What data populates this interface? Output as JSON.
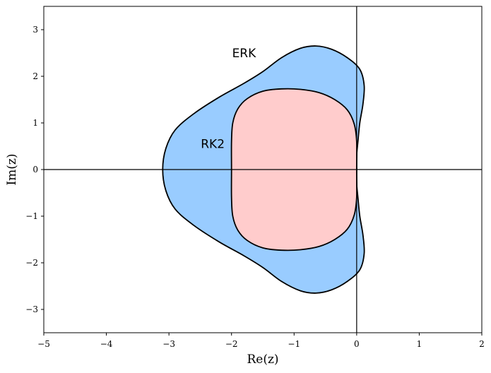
{
  "chart_data": {
    "type": "area",
    "title": "",
    "xlabel": "Re(z)",
    "ylabel": "Im(z)",
    "xlim": [
      -5,
      2
    ],
    "ylim": [
      -3.5,
      3.5
    ],
    "xticks": [
      -5,
      -4,
      -3,
      -2,
      -1,
      0,
      1,
      2
    ],
    "yticks": [
      -3,
      -2,
      -1,
      0,
      1,
      2,
      3
    ],
    "xtick_labels": [
      "−5",
      "−4",
      "−3",
      "−2",
      "−1",
      "0",
      "1",
      "2"
    ],
    "ytick_labels": [
      "−3",
      "−2",
      "−1",
      "0",
      "1",
      "2",
      "3"
    ],
    "grid": false,
    "reference_lines": {
      "horizontal_y": 0,
      "vertical_x": 0
    },
    "regions": [
      {
        "name": "ERK",
        "label": "ERK",
        "label_at": [
          -1.8,
          2.5
        ],
        "fill": "#99ccff",
        "boundary_upper_half": [
          [
            -3.1,
            0.0
          ],
          [
            -3.05,
            0.45
          ],
          [
            -2.9,
            0.85
          ],
          [
            -2.6,
            1.2
          ],
          [
            -2.2,
            1.55
          ],
          [
            -1.8,
            1.85
          ],
          [
            -1.5,
            2.1
          ],
          [
            -1.2,
            2.4
          ],
          [
            -0.9,
            2.6
          ],
          [
            -0.65,
            2.65
          ],
          [
            -0.4,
            2.58
          ],
          [
            -0.15,
            2.4
          ],
          [
            0.05,
            2.15
          ],
          [
            0.12,
            1.8
          ],
          [
            0.1,
            1.4
          ],
          [
            0.05,
            1.0
          ],
          [
            0.02,
            0.6
          ],
          [
            0.0,
            0.3
          ],
          [
            0.0,
            0.0
          ]
        ]
      },
      {
        "name": "RK2",
        "label": "RK2",
        "label_at": [
          -2.3,
          0.55
        ],
        "fill": "#ffcccc",
        "boundary_upper_half": [
          [
            -2.0,
            0.0
          ],
          [
            -2.0,
            0.6
          ],
          [
            -1.98,
            1.0
          ],
          [
            -1.9,
            1.3
          ],
          [
            -1.75,
            1.52
          ],
          [
            -1.5,
            1.68
          ],
          [
            -1.2,
            1.73
          ],
          [
            -0.9,
            1.72
          ],
          [
            -0.6,
            1.65
          ],
          [
            -0.35,
            1.5
          ],
          [
            -0.15,
            1.28
          ],
          [
            -0.04,
            0.98
          ],
          [
            0.0,
            0.6
          ],
          [
            0.0,
            0.0
          ]
        ]
      }
    ]
  }
}
